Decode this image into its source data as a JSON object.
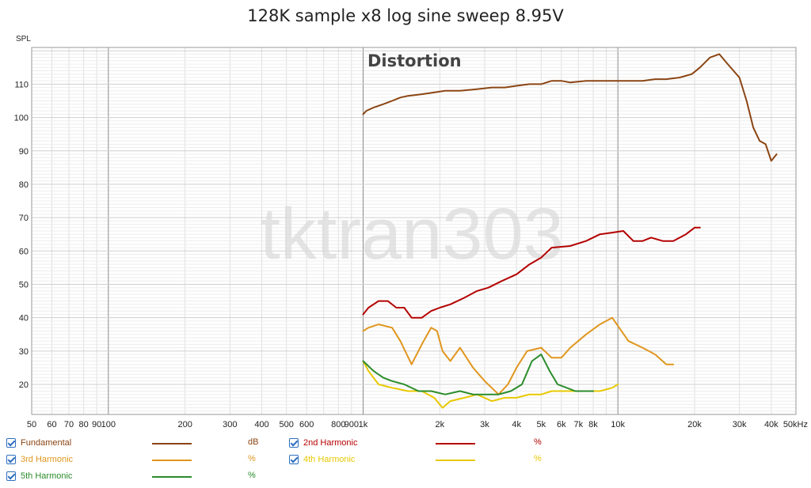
{
  "chart_data": {
    "type": "line",
    "title": "128K sample x8 log sine sweep 8.95V",
    "annotation": "Distortion",
    "watermark": "tktran303",
    "ylabel": "SPL",
    "xlabel": "",
    "xscale": "log",
    "xlim": [
      50,
      50000
    ],
    "ylim": [
      11,
      121
    ],
    "grid": true,
    "y_ticks": [
      20,
      30,
      40,
      50,
      60,
      70,
      80,
      90,
      100,
      110
    ],
    "x_tick_labels": [
      {
        "v": 50,
        "t": "50"
      },
      {
        "v": 60,
        "t": "60"
      },
      {
        "v": 70,
        "t": "70"
      },
      {
        "v": 80,
        "t": "80"
      },
      {
        "v": 90,
        "t": "90"
      },
      {
        "v": 100,
        "t": "100"
      },
      {
        "v": 200,
        "t": "200"
      },
      {
        "v": 300,
        "t": "300"
      },
      {
        "v": 400,
        "t": "400"
      },
      {
        "v": 500,
        "t": "500"
      },
      {
        "v": 600,
        "t": "600"
      },
      {
        "v": 800,
        "t": "800"
      },
      {
        "v": 900,
        "t": "900"
      },
      {
        "v": 1000,
        "t": "1k"
      },
      {
        "v": 2000,
        "t": "2k"
      },
      {
        "v": 3000,
        "t": "3k"
      },
      {
        "v": 4000,
        "t": "4k"
      },
      {
        "v": 5000,
        "t": "5k"
      },
      {
        "v": 6000,
        "t": "6k"
      },
      {
        "v": 7000,
        "t": "7k"
      },
      {
        "v": 8000,
        "t": "8k"
      },
      {
        "v": 10000,
        "t": "10k"
      },
      {
        "v": 20000,
        "t": "20k"
      },
      {
        "v": 30000,
        "t": "30k"
      },
      {
        "v": 40000,
        "t": "40k"
      },
      {
        "v": 50000,
        "t": "50kHz"
      }
    ],
    "series": [
      {
        "name": "Fundamental",
        "unit": "dB",
        "color": "#8b4513",
        "points": [
          [
            1000,
            101
          ],
          [
            1030,
            102
          ],
          [
            1100,
            103
          ],
          [
            1200,
            104
          ],
          [
            1300,
            105
          ],
          [
            1400,
            106
          ],
          [
            1500,
            106.5
          ],
          [
            1700,
            107
          ],
          [
            1900,
            107.5
          ],
          [
            2100,
            108
          ],
          [
            2400,
            108
          ],
          [
            2800,
            108.5
          ],
          [
            3200,
            109
          ],
          [
            3600,
            109
          ],
          [
            4000,
            109.5
          ],
          [
            4500,
            110
          ],
          [
            5000,
            110
          ],
          [
            5500,
            111
          ],
          [
            6000,
            111
          ],
          [
            6500,
            110.5
          ],
          [
            7500,
            111
          ],
          [
            8500,
            111
          ],
          [
            9500,
            111
          ],
          [
            11000,
            111
          ],
          [
            12500,
            111
          ],
          [
            14000,
            111.5
          ],
          [
            15500,
            111.5
          ],
          [
            17500,
            112
          ],
          [
            19500,
            113
          ],
          [
            21000,
            115
          ],
          [
            23000,
            118
          ],
          [
            25000,
            119
          ],
          [
            27000,
            116
          ],
          [
            30000,
            112
          ],
          [
            32000,
            105
          ],
          [
            34000,
            97
          ],
          [
            36000,
            93
          ],
          [
            38000,
            92
          ],
          [
            40000,
            87
          ],
          [
            42000,
            89
          ]
        ]
      },
      {
        "name": "2nd Harmonic",
        "unit": "%",
        "color": "#b40000",
        "points": [
          [
            1000,
            41
          ],
          [
            1050,
            43
          ],
          [
            1150,
            45
          ],
          [
            1250,
            45
          ],
          [
            1350,
            43
          ],
          [
            1450,
            43
          ],
          [
            1550,
            40
          ],
          [
            1700,
            40
          ],
          [
            1850,
            42
          ],
          [
            2000,
            43
          ],
          [
            2200,
            44
          ],
          [
            2500,
            46
          ],
          [
            2800,
            48
          ],
          [
            3100,
            49
          ],
          [
            3500,
            51
          ],
          [
            4000,
            53
          ],
          [
            4500,
            56
          ],
          [
            5000,
            58
          ],
          [
            5500,
            61
          ],
          [
            6500,
            61.5
          ],
          [
            7500,
            63
          ],
          [
            8500,
            65
          ],
          [
            9500,
            65.5
          ],
          [
            10500,
            66
          ],
          [
            11500,
            63
          ],
          [
            12500,
            63
          ],
          [
            13500,
            64
          ],
          [
            15000,
            63
          ],
          [
            16500,
            63
          ],
          [
            18500,
            65
          ],
          [
            20000,
            67
          ],
          [
            21000,
            67
          ]
        ]
      },
      {
        "name": "3rd Harmonic",
        "unit": "%",
        "color": "#e0961e",
        "points": [
          [
            1000,
            36
          ],
          [
            1050,
            37
          ],
          [
            1150,
            38
          ],
          [
            1300,
            37
          ],
          [
            1400,
            33
          ],
          [
            1550,
            26
          ],
          [
            1700,
            32
          ],
          [
            1850,
            37
          ],
          [
            1950,
            36
          ],
          [
            2050,
            30
          ],
          [
            2200,
            27
          ],
          [
            2400,
            31
          ],
          [
            2700,
            25
          ],
          [
            3000,
            21
          ],
          [
            3400,
            17
          ],
          [
            3700,
            20
          ],
          [
            4000,
            25
          ],
          [
            4400,
            30
          ],
          [
            5000,
            31
          ],
          [
            5500,
            28
          ],
          [
            6000,
            28
          ],
          [
            6500,
            31
          ],
          [
            7500,
            35
          ],
          [
            8500,
            38
          ],
          [
            9500,
            40
          ],
          [
            11000,
            33
          ],
          [
            12500,
            31
          ],
          [
            14000,
            29
          ],
          [
            15500,
            26
          ],
          [
            16500,
            26
          ]
        ]
      },
      {
        "name": "4th Harmonic",
        "unit": "%",
        "color": "#e8c800",
        "points": [
          [
            1000,
            27
          ],
          [
            1050,
            24
          ],
          [
            1150,
            20
          ],
          [
            1300,
            19
          ],
          [
            1500,
            18
          ],
          [
            1700,
            18
          ],
          [
            1900,
            16
          ],
          [
            2050,
            13
          ],
          [
            2200,
            15
          ],
          [
            2500,
            16
          ],
          [
            2800,
            17
          ],
          [
            3200,
            15
          ],
          [
            3600,
            16
          ],
          [
            4000,
            16
          ],
          [
            4500,
            17
          ],
          [
            5000,
            17
          ],
          [
            5500,
            18
          ],
          [
            6000,
            18
          ],
          [
            6500,
            18
          ],
          [
            7000,
            18
          ],
          [
            7500,
            18
          ],
          [
            8500,
            18
          ],
          [
            9500,
            19
          ],
          [
            10000,
            20
          ]
        ]
      },
      {
        "name": "5th Harmonic",
        "unit": "%",
        "color": "#2a8c2a",
        "points": [
          [
            1000,
            27
          ],
          [
            1100,
            24
          ],
          [
            1200,
            22
          ],
          [
            1300,
            21
          ],
          [
            1450,
            20
          ],
          [
            1650,
            18
          ],
          [
            1850,
            18
          ],
          [
            2100,
            17
          ],
          [
            2400,
            18
          ],
          [
            2700,
            17
          ],
          [
            3000,
            17
          ],
          [
            3400,
            17
          ],
          [
            3800,
            18
          ],
          [
            4200,
            20
          ],
          [
            4600,
            27
          ],
          [
            5000,
            29
          ],
          [
            5400,
            24
          ],
          [
            5800,
            20
          ],
          [
            6300,
            19
          ],
          [
            6800,
            18
          ],
          [
            7400,
            18
          ],
          [
            8000,
            18
          ]
        ]
      }
    ]
  }
}
